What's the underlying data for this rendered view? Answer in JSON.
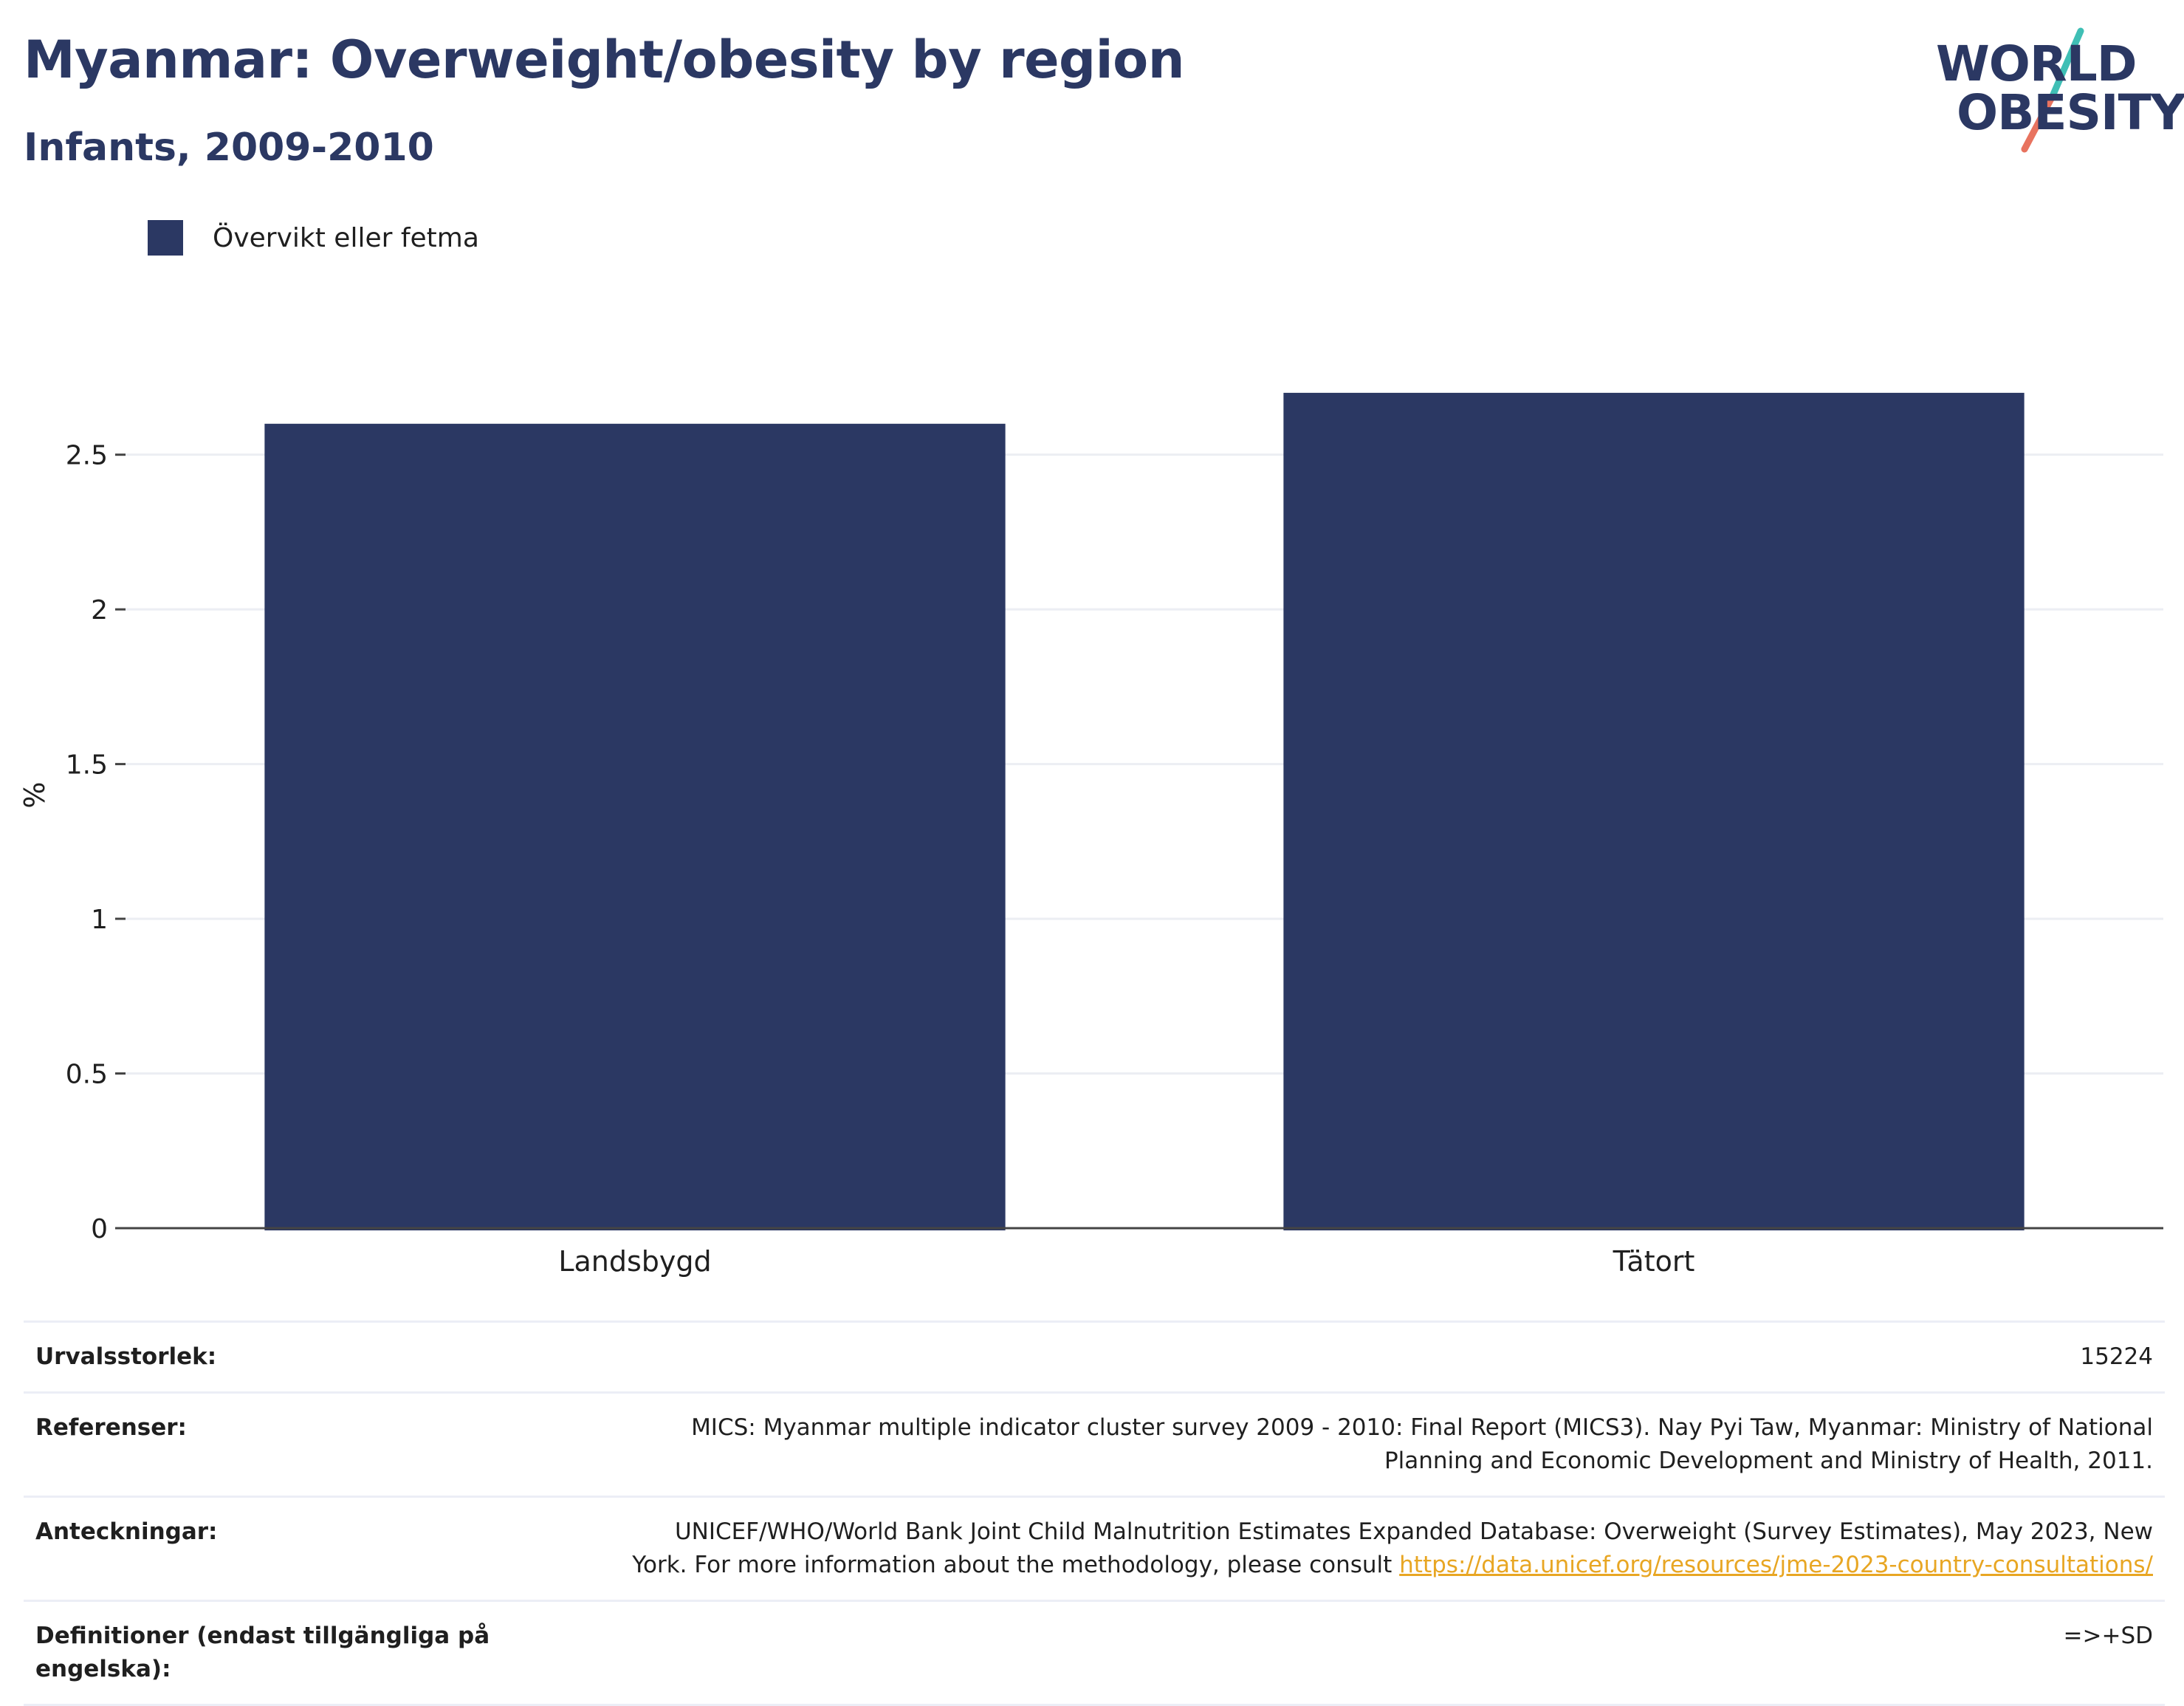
{
  "header": {
    "title": "Myanmar: Overweight/obesity by region",
    "subtitle": "Infants, 2009-2010"
  },
  "logo": {
    "line1": "WORLD",
    "line2": "OBESITY",
    "colors": {
      "navy": "#2b3863",
      "teal": "#3fbfb5",
      "coral": "#e8735f"
    }
  },
  "legend": {
    "label": "Övervikt eller fetma",
    "color": "#2b3863"
  },
  "chart_data": {
    "type": "bar",
    "categories": [
      "Landsbygd",
      "Tätort"
    ],
    "series": [
      {
        "name": "Övervikt eller fetma",
        "values": [
          2.6,
          2.7
        ],
        "color": "#2b3863"
      }
    ],
    "ylabel": "%",
    "ylim": [
      0,
      2.8
    ],
    "yticks": [
      0,
      0.5,
      1,
      1.5,
      2,
      2.5
    ],
    "ytick_labels": [
      "0",
      "0.5",
      "1",
      "1.5",
      "2",
      "2.5"
    ],
    "grid": true,
    "legend_position": "top-left"
  },
  "meta": {
    "sample_size": {
      "label": "Urvalsstorlek:",
      "value": "15224"
    },
    "references": {
      "label": "Referenser:",
      "line1": "MICS: Myanmar multiple indicator cluster survey 2009 - 2010: Final Report (MICS3). Nay Pyi Taw, Myanmar: Ministry of National",
      "line2": "Planning and Economic Development and Ministry of Health, 2011."
    },
    "notes": {
      "label": "Anteckningar:",
      "line1": "UNICEF/WHO/World Bank Joint Child Malnutrition Estimates Expanded Database: Overweight (Survey Estimates), May 2023, New",
      "line2": "York. For more information about the methodology, please consult",
      "link_text": "https://data.unicef.org/resources/jme-2023-country-consultations/"
    },
    "definitions": {
      "label_line1": "Definitioner (endast tillgängliga på",
      "label_line2": "engelska):",
      "value": "=>+SD"
    }
  }
}
